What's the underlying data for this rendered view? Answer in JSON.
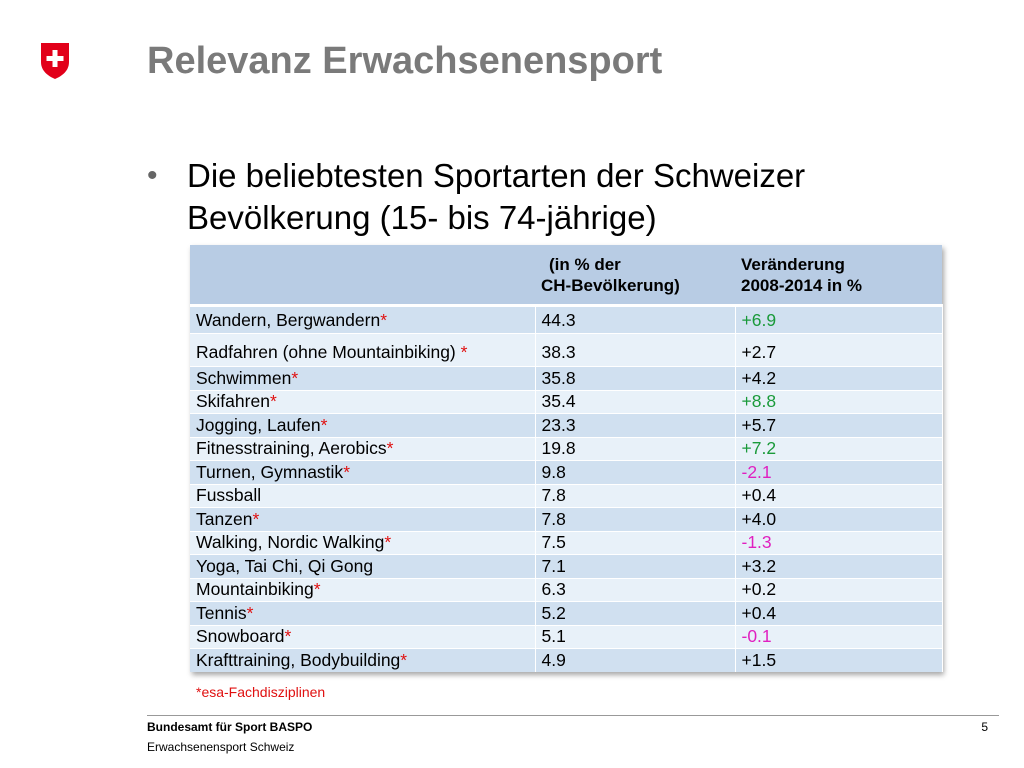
{
  "header": {
    "title": "Relevanz Erwachsenensport",
    "logo_icon": "swiss-shield-icon"
  },
  "bullet": {
    "line1": "Die beliebtesten Sportarten der Schweizer",
    "line2": "Bevölkerung (15- bis 74-jährige)"
  },
  "table": {
    "headers": {
      "col2_line1": "(in % der",
      "col2_line2": "CH-Bevölkerung)",
      "col3_line1": "Veränderung",
      "col3_line2": "2008-2014 in %"
    },
    "rows": [
      {
        "sport": "Wandern, Bergwandern",
        "star": "*",
        "pct": "44.3",
        "change": "+6.9",
        "change_color": "green"
      },
      {
        "sport": "Radfahren (ohne Mountainbiking) ",
        "star": "*",
        "pct": "38.3",
        "change": "+2.7",
        "change_color": "black"
      },
      {
        "sport": "Schwimmen",
        "star": "*",
        "pct": "35.8",
        "change": "+4.2",
        "change_color": "black"
      },
      {
        "sport": "Skifahren",
        "star": "*",
        "pct": "35.4",
        "change": "+8.8",
        "change_color": "green"
      },
      {
        "sport": "Jogging, Laufen",
        "star": "*",
        "pct": "23.3",
        "change": "+5.7",
        "change_color": "black"
      },
      {
        "sport": "Fitnesstraining, Aerobics",
        "star": "*",
        "pct": "19.8",
        "change": "+7.2",
        "change_color": "green"
      },
      {
        "sport": "Turnen, Gymnastik",
        "star": "*",
        "pct": "9.8",
        "change": "-2.1",
        "change_color": "magenta"
      },
      {
        "sport": "Fussball",
        "star": "",
        "pct": "7.8",
        "change": "+0.4",
        "change_color": "black"
      },
      {
        "sport": "Tanzen",
        "star": "*",
        "pct": "7.8",
        "change": "+4.0",
        "change_color": "black"
      },
      {
        "sport": "Walking, Nordic Walking",
        "star": "*",
        "pct": "7.5",
        "change": "-1.3",
        "change_color": "magenta"
      },
      {
        "sport": "Yoga, Tai Chi, Qi Gong",
        "star": "",
        "pct": "7.1",
        "change": "+3.2",
        "change_color": "black"
      },
      {
        "sport": "Mountainbiking",
        "star": "*",
        "pct": "6.3",
        "change": "+0.2",
        "change_color": "black"
      },
      {
        "sport": "Tennis",
        "star": "*",
        "pct": "5.2",
        "change": "+0.4",
        "change_color": "black"
      },
      {
        "sport": "Snowboard",
        "star": "*",
        "pct": "5.1",
        "change": "-0.1",
        "change_color": "magenta"
      },
      {
        "sport": "Krafttraining, Bodybuilding",
        "star": "*",
        "pct": "4.9",
        "change": "+1.5",
        "change_color": "black"
      }
    ]
  },
  "footnote": "*esa-Fachdisziplinen",
  "footer": {
    "org": "Bundesamt für Sport BASPO",
    "sub": "Erwachsenensport Schweiz",
    "page": "5"
  },
  "colors": {
    "header_bg": "#b8cce4",
    "row_odd": "#d0e0f0",
    "row_even": "#e8f1f9",
    "star": "#e01010",
    "positive_highlight": "#1a9a3a",
    "negative": "#e020c0",
    "title": "#7a7a7a",
    "swiss_red": "#e2001a"
  }
}
